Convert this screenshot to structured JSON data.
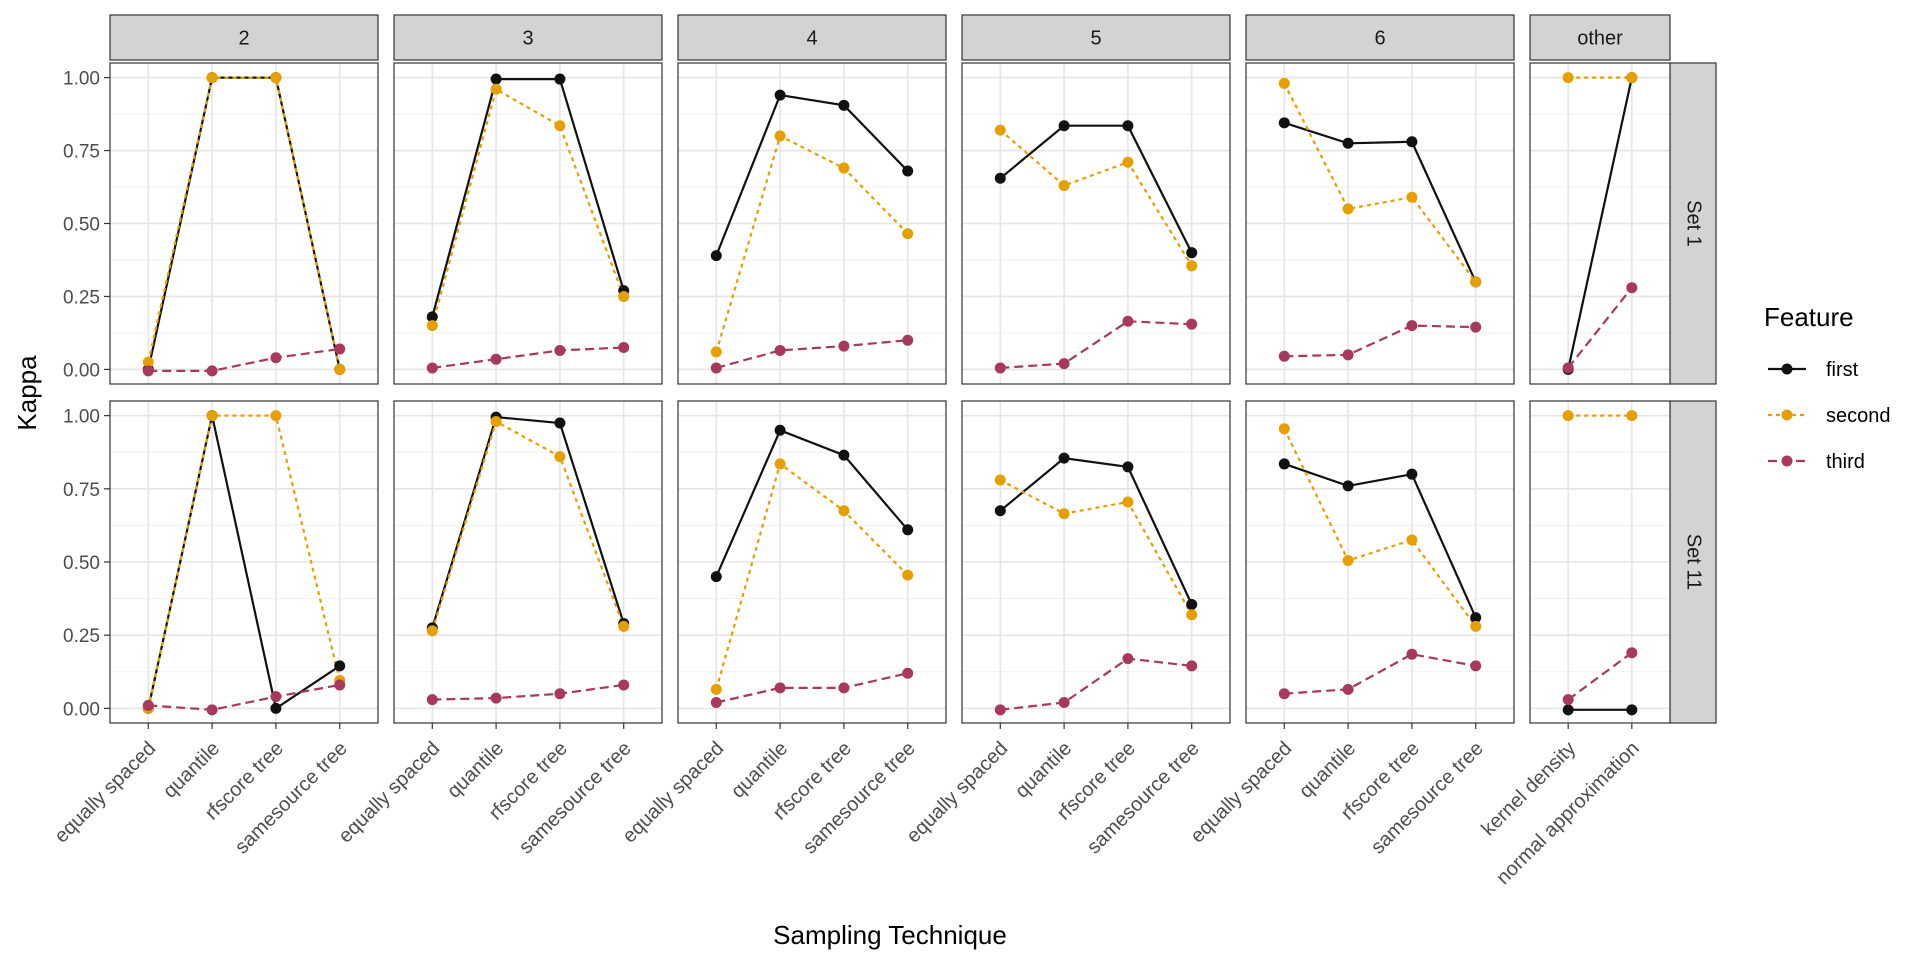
{
  "chart_data": {
    "type": "line",
    "xlabel": "Sampling Technique",
    "ylabel": "Kappa",
    "ylim": [
      -0.05,
      1.05
    ],
    "yticks": [
      0.0,
      0.25,
      0.5,
      0.75,
      1.0
    ],
    "ytick_labels": [
      "0.00",
      "0.25",
      "0.50",
      "0.75",
      "1.00"
    ],
    "grid": true,
    "legend": {
      "title": "Feature",
      "placement": "right",
      "entries": [
        {
          "name": "first",
          "color": "#111111",
          "dash": "solid"
        },
        {
          "name": "second",
          "color": "#E69F00",
          "dash": "dotted"
        },
        {
          "name": "third",
          "color": "#A8385C",
          "dash": "dashed"
        }
      ]
    },
    "columns": [
      {
        "label": "2",
        "categories": [
          "equally spaced",
          "quantile",
          "rfscore tree",
          "samesource tree"
        ]
      },
      {
        "label": "3",
        "categories": [
          "equally spaced",
          "quantile",
          "rfscore tree",
          "samesource tree"
        ]
      },
      {
        "label": "4",
        "categories": [
          "equally spaced",
          "quantile",
          "rfscore tree",
          "samesource tree"
        ]
      },
      {
        "label": "5",
        "categories": [
          "equally spaced",
          "quantile",
          "rfscore tree",
          "samesource tree"
        ]
      },
      {
        "label": "6",
        "categories": [
          "equally spaced",
          "quantile",
          "rfscore tree",
          "samesource tree"
        ]
      },
      {
        "label": "other",
        "categories": [
          "kernel density",
          "normal approximation"
        ]
      }
    ],
    "rows": [
      "Set 1",
      "Set 11"
    ],
    "panels": [
      [
        {
          "first": [
            0.0,
            1.0,
            1.0,
            0.0
          ],
          "second": [
            0.025,
            1.0,
            1.0,
            0.0
          ],
          "third": [
            -0.005,
            -0.005,
            0.04,
            0.07
          ]
        },
        {
          "first": [
            0.18,
            0.995,
            0.995,
            0.27
          ],
          "second": [
            0.15,
            0.96,
            0.835,
            0.25
          ],
          "third": [
            0.005,
            0.035,
            0.065,
            0.075
          ]
        },
        {
          "first": [
            0.39,
            0.94,
            0.905,
            0.68
          ],
          "second": [
            0.06,
            0.8,
            0.69,
            0.465
          ],
          "third": [
            0.005,
            0.065,
            0.08,
            0.1
          ]
        },
        {
          "first": [
            0.655,
            0.835,
            0.835,
            0.4
          ],
          "second": [
            0.82,
            0.63,
            0.71,
            0.355
          ],
          "third": [
            0.005,
            0.02,
            0.165,
            0.155
          ]
        },
        {
          "first": [
            0.845,
            0.775,
            0.78,
            0.3
          ],
          "second": [
            0.98,
            0.55,
            0.59,
            0.3
          ],
          "third": [
            0.045,
            0.05,
            0.15,
            0.145
          ]
        },
        {
          "first": [
            0.0,
            1.0
          ],
          "second": [
            1.0,
            1.0
          ],
          "third": [
            0.005,
            0.28
          ]
        }
      ],
      [
        {
          "first": [
            0.0,
            1.0,
            0.0,
            0.145
          ],
          "second": [
            0.0,
            1.0,
            1.0,
            0.095
          ],
          "third": [
            0.01,
            -0.005,
            0.04,
            0.08
          ]
        },
        {
          "first": [
            0.275,
            0.995,
            0.975,
            0.29
          ],
          "second": [
            0.265,
            0.98,
            0.86,
            0.28
          ],
          "third": [
            0.03,
            0.035,
            0.05,
            0.08
          ]
        },
        {
          "first": [
            0.45,
            0.95,
            0.865,
            0.61
          ],
          "second": [
            0.065,
            0.835,
            0.675,
            0.455
          ],
          "third": [
            0.02,
            0.07,
            0.07,
            0.12
          ]
        },
        {
          "first": [
            0.675,
            0.855,
            0.825,
            0.355
          ],
          "second": [
            0.78,
            0.665,
            0.705,
            0.32
          ],
          "third": [
            -0.005,
            0.02,
            0.17,
            0.145
          ]
        },
        {
          "first": [
            0.835,
            0.76,
            0.8,
            0.31
          ],
          "second": [
            0.955,
            0.505,
            0.575,
            0.28
          ],
          "third": [
            0.05,
            0.065,
            0.185,
            0.145
          ]
        },
        {
          "first": [
            -0.005,
            -0.005
          ],
          "second": [
            1.0,
            1.0
          ],
          "third": [
            0.03,
            0.19
          ]
        }
      ]
    ]
  }
}
